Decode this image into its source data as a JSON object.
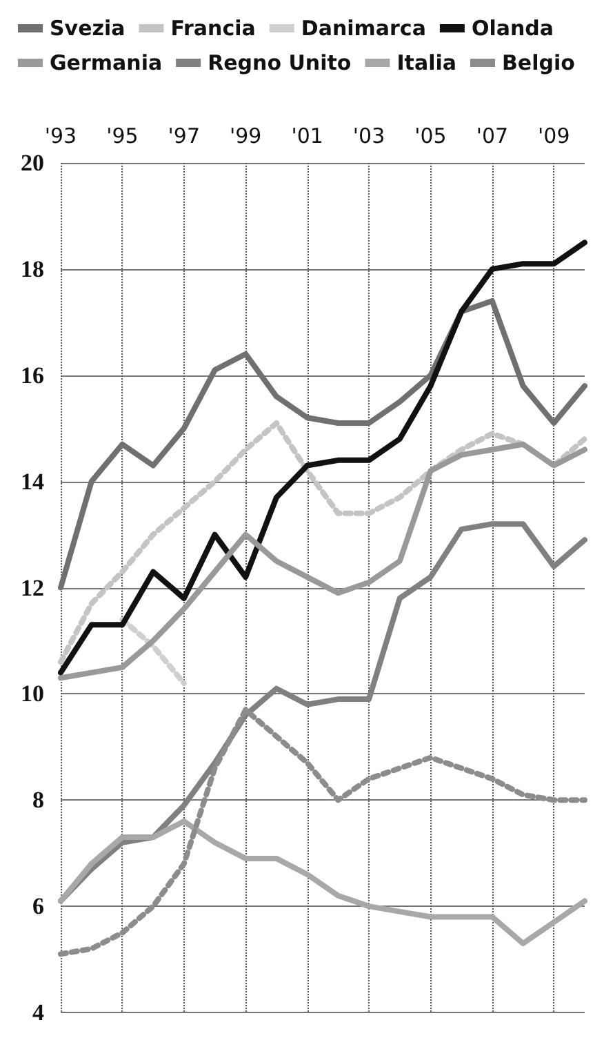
{
  "chart_data": {
    "type": "line",
    "x": [
      1993,
      1994,
      1995,
      1996,
      1997,
      1998,
      1999,
      2000,
      2001,
      2002,
      2003,
      2004,
      2005,
      2006,
      2007,
      2008,
      2009,
      2010
    ],
    "xlim": [
      1993,
      2010
    ],
    "xticks": [
      {
        "value": 1993,
        "label": "'93"
      },
      {
        "value": 1995,
        "label": "'95"
      },
      {
        "value": 1997,
        "label": "'97"
      },
      {
        "value": 1999,
        "label": "'99"
      },
      {
        "value": 2001,
        "label": "'01"
      },
      {
        "value": 2003,
        "label": "'03"
      },
      {
        "value": 2005,
        "label": "'05"
      },
      {
        "value": 2007,
        "label": "'07"
      },
      {
        "value": 2009,
        "label": "'09"
      }
    ],
    "ylim": [
      4,
      20
    ],
    "yticks": [
      4,
      6,
      8,
      10,
      12,
      14,
      16,
      18,
      20
    ],
    "grid": true,
    "legend": "top",
    "marker": "none",
    "line_style": "solid",
    "series": [
      {
        "name": "Svezia",
        "color": "#707070",
        "values": [
          12.0,
          14.0,
          14.7,
          14.3,
          15.0,
          16.1,
          16.4,
          15.6,
          15.2,
          15.1,
          15.1,
          15.5,
          16.0,
          17.2,
          17.4,
          15.8,
          15.1,
          15.8
        ]
      },
      {
        "name": "Francia",
        "color": "#c4c4c4",
        "line_style": "dotted",
        "values": [
          10.6,
          11.7,
          12.3,
          13.0,
          13.5,
          14.0,
          14.6,
          15.1,
          14.2,
          13.4,
          13.4,
          13.7,
          14.2,
          14.6,
          14.9,
          14.7,
          14.3,
          14.8
        ]
      },
      {
        "name": "Danimarca",
        "color": "#d0d0d0",
        "line_style": "dotted",
        "values": [
          null,
          null,
          11.4,
          10.9,
          10.2,
          null,
          null,
          null,
          null,
          null,
          null,
          null,
          null,
          null,
          null,
          null,
          null,
          null
        ]
      },
      {
        "name": "Olanda",
        "color": "#111111",
        "values": [
          10.4,
          11.3,
          11.3,
          12.3,
          11.8,
          13.0,
          12.2,
          13.7,
          14.3,
          14.4,
          14.4,
          14.8,
          15.8,
          17.2,
          18.0,
          18.1,
          18.1,
          18.5
        ]
      },
      {
        "name": "Germania",
        "color": "#999999",
        "values": [
          10.3,
          10.4,
          10.5,
          11.0,
          11.6,
          12.3,
          13.0,
          12.5,
          12.2,
          11.9,
          12.1,
          12.5,
          14.2,
          14.5,
          14.6,
          14.7,
          14.3,
          14.6
        ]
      },
      {
        "name": "Regno Unito",
        "color": "#808080",
        "values": [
          6.1,
          6.7,
          7.2,
          7.3,
          7.9,
          8.7,
          9.6,
          10.1,
          9.8,
          9.9,
          9.9,
          11.8,
          12.2,
          13.1,
          13.2,
          13.2,
          12.4,
          12.9
        ]
      },
      {
        "name": "Italia",
        "color": "#a8a8a8",
        "values": [
          6.1,
          6.8,
          7.3,
          7.3,
          7.6,
          7.2,
          6.9,
          6.9,
          6.6,
          6.2,
          6.0,
          5.9,
          5.8,
          5.8,
          5.8,
          5.3,
          5.7,
          6.1
        ]
      },
      {
        "name": "Belgio",
        "color": "#8c8c8c",
        "line_style": "dotted",
        "values": [
          5.1,
          5.2,
          5.5,
          6.0,
          6.8,
          8.6,
          9.7,
          9.2,
          8.7,
          8.0,
          8.4,
          8.6,
          8.8,
          8.6,
          8.4,
          8.1,
          8.0,
          8.0
        ]
      }
    ]
  }
}
